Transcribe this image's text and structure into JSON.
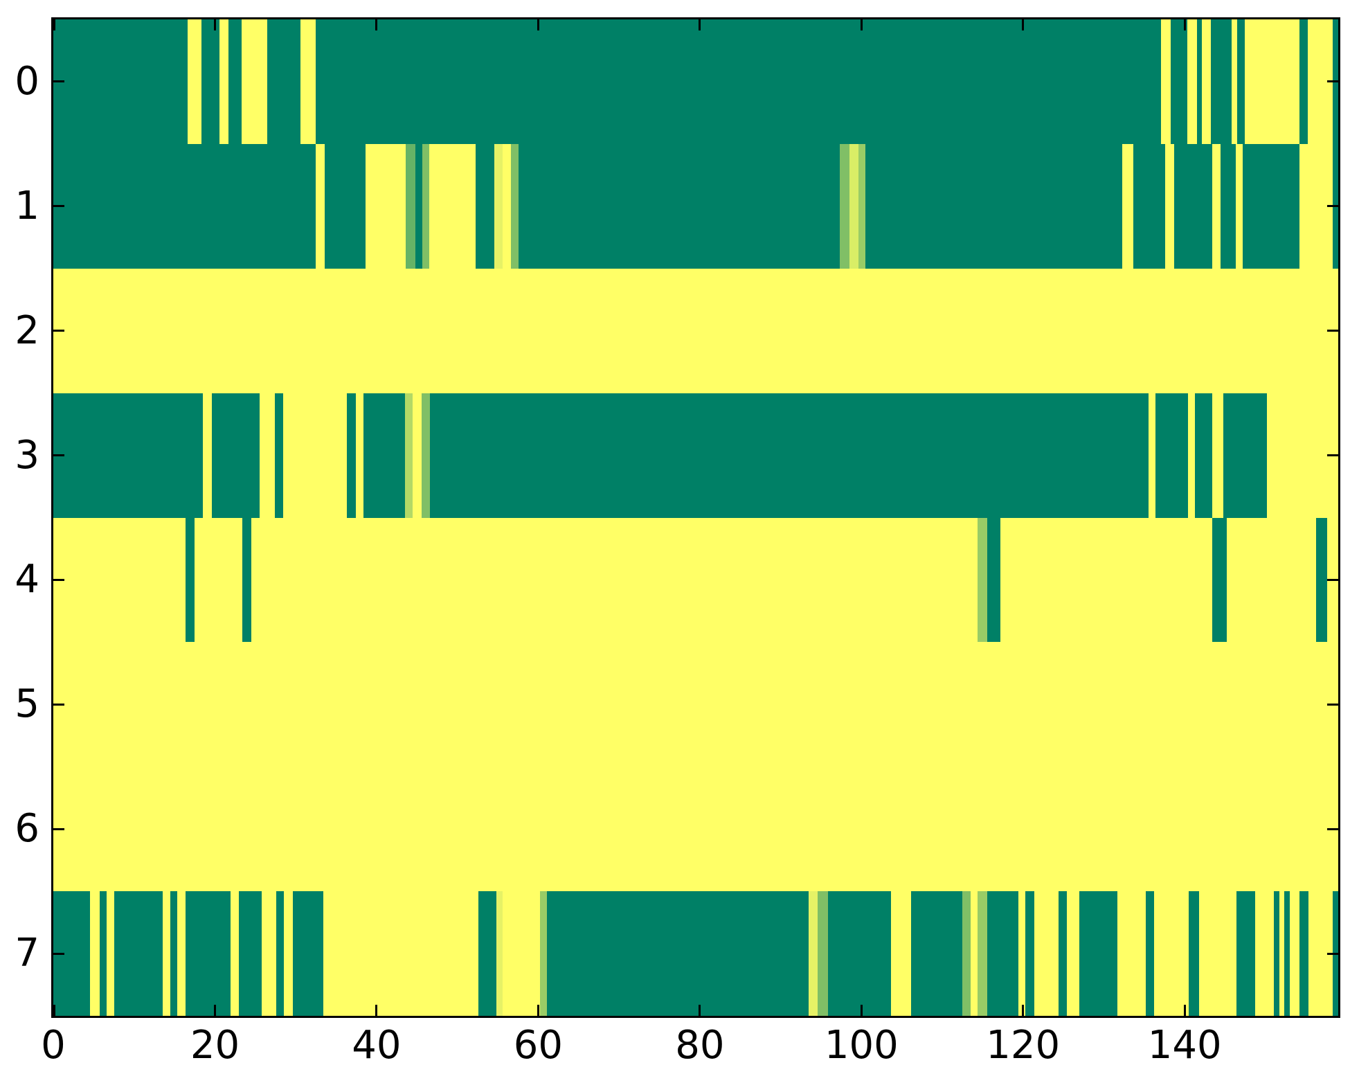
{
  "chart_data": {
    "type": "heatmap",
    "title": "",
    "xlabel": "",
    "ylabel": "",
    "x_range": [
      0,
      159
    ],
    "n_rows": 8,
    "x_ticks": [
      0,
      20,
      40,
      60,
      80,
      100,
      120,
      140
    ],
    "y_ticks": [
      0,
      1,
      2,
      3,
      4,
      5,
      6,
      7
    ],
    "grid": false,
    "legend": false,
    "colormap": "summer",
    "palette": {
      "t": "#008066",
      "y": "#FFFF66",
      "g4": "#66B366",
      "g5": "#80BF66",
      "g6": "#99CC66",
      "g7": "#B3D966",
      "g85": "#D9EE66",
      "g9": "#E6F266"
    },
    "axis_color": "#000000",
    "background_color": "#ffffff",
    "rows": [
      {
        "label": "0",
        "segments": [
          [
            0,
            16.6,
            "t"
          ],
          [
            16.6,
            18.3,
            "y"
          ],
          [
            18.3,
            20.6,
            "t"
          ],
          [
            20.6,
            21.7,
            "y"
          ],
          [
            21.7,
            23.3,
            "t"
          ],
          [
            23.3,
            26.5,
            "y"
          ],
          [
            26.5,
            30.6,
            "t"
          ],
          [
            30.6,
            32.5,
            "y"
          ],
          [
            32.5,
            137.1,
            "t"
          ],
          [
            137.1,
            138.3,
            "y"
          ],
          [
            138.3,
            140.3,
            "t"
          ],
          [
            140.3,
            141.5,
            "y"
          ],
          [
            141.5,
            142.1,
            "t"
          ],
          [
            142.1,
            143.2,
            "y"
          ],
          [
            143.2,
            145.8,
            "t"
          ],
          [
            145.8,
            146.5,
            "y"
          ],
          [
            146.5,
            147.4,
            "t"
          ],
          [
            147.4,
            154.2,
            "y"
          ],
          [
            154.2,
            155.2,
            "t"
          ],
          [
            155.2,
            158.3,
            "y"
          ],
          [
            158.3,
            159,
            "t"
          ]
        ]
      },
      {
        "label": "1",
        "segments": [
          [
            0,
            32.5,
            "t"
          ],
          [
            32.5,
            33.6,
            "y"
          ],
          [
            33.6,
            38.6,
            "t"
          ],
          [
            38.6,
            43.6,
            "y"
          ],
          [
            43.6,
            44.8,
            "g4"
          ],
          [
            44.8,
            45.7,
            "t"
          ],
          [
            45.7,
            46.5,
            "g5"
          ],
          [
            46.5,
            52.3,
            "y"
          ],
          [
            52.3,
            54.6,
            "t"
          ],
          [
            54.6,
            55.6,
            "g9"
          ],
          [
            55.6,
            56.6,
            "y"
          ],
          [
            56.6,
            57.6,
            "g5"
          ],
          [
            57.6,
            97.3,
            "t"
          ],
          [
            97.3,
            98.5,
            "g5"
          ],
          [
            98.5,
            99.6,
            "g85"
          ],
          [
            99.6,
            100.5,
            "g6"
          ],
          [
            100.5,
            132.3,
            "t"
          ],
          [
            132.3,
            133.6,
            "y"
          ],
          [
            133.6,
            137.6,
            "t"
          ],
          [
            137.6,
            138.7,
            "y"
          ],
          [
            138.7,
            143.4,
            "t"
          ],
          [
            143.4,
            144.4,
            "y"
          ],
          [
            144.4,
            146.3,
            "t"
          ],
          [
            146.3,
            147.2,
            "y"
          ],
          [
            147.2,
            154.2,
            "t"
          ],
          [
            154.2,
            158.3,
            "y"
          ],
          [
            158.3,
            159,
            "t"
          ]
        ]
      },
      {
        "label": "2",
        "segments": [
          [
            0,
            159,
            "y"
          ]
        ]
      },
      {
        "label": "3",
        "segments": [
          [
            0,
            18.5,
            "t"
          ],
          [
            18.5,
            19.6,
            "y"
          ],
          [
            19.6,
            25.5,
            "t"
          ],
          [
            25.5,
            27.4,
            "y"
          ],
          [
            27.4,
            28.4,
            "t"
          ],
          [
            28.4,
            36.3,
            "y"
          ],
          [
            36.3,
            37.4,
            "t"
          ],
          [
            37.4,
            38.4,
            "y"
          ],
          [
            38.4,
            43.5,
            "t"
          ],
          [
            43.5,
            44.5,
            "g7"
          ],
          [
            44.5,
            45.6,
            "y"
          ],
          [
            45.6,
            46.6,
            "g5"
          ],
          [
            46.6,
            135.5,
            "t"
          ],
          [
            135.5,
            136.4,
            "y"
          ],
          [
            136.4,
            140.4,
            "t"
          ],
          [
            140.4,
            141.3,
            "y"
          ],
          [
            141.3,
            143.4,
            "t"
          ],
          [
            143.4,
            144.8,
            "y"
          ],
          [
            144.8,
            150.2,
            "t"
          ],
          [
            150.2,
            159,
            "y"
          ]
        ]
      },
      {
        "label": "4",
        "segments": [
          [
            0,
            16.4,
            "y"
          ],
          [
            16.4,
            17.5,
            "t"
          ],
          [
            17.5,
            23.4,
            "y"
          ],
          [
            23.4,
            24.5,
            "t"
          ],
          [
            24.5,
            114.4,
            "y"
          ],
          [
            114.4,
            115.6,
            "g6"
          ],
          [
            115.6,
            117.2,
            "t"
          ],
          [
            117.2,
            143.4,
            "y"
          ],
          [
            143.4,
            145.2,
            "t"
          ],
          [
            145.2,
            156.3,
            "y"
          ],
          [
            156.3,
            157.6,
            "t"
          ],
          [
            157.6,
            159,
            "y"
          ]
        ]
      },
      {
        "label": "5",
        "segments": [
          [
            0,
            159,
            "y"
          ]
        ]
      },
      {
        "label": "6",
        "segments": [
          [
            0,
            159,
            "y"
          ]
        ]
      },
      {
        "label": "7",
        "segments": [
          [
            0,
            4.5,
            "t"
          ],
          [
            4.5,
            5.7,
            "y"
          ],
          [
            5.7,
            6.6,
            "t"
          ],
          [
            6.6,
            7.5,
            "y"
          ],
          [
            7.5,
            13.5,
            "t"
          ],
          [
            13.5,
            14.5,
            "y"
          ],
          [
            14.5,
            15.3,
            "t"
          ],
          [
            15.3,
            16.4,
            "y"
          ],
          [
            16.4,
            21.9,
            "t"
          ],
          [
            21.9,
            23,
            "y"
          ],
          [
            23,
            25.8,
            "t"
          ],
          [
            25.8,
            27.6,
            "y"
          ],
          [
            27.6,
            28.5,
            "t"
          ],
          [
            28.5,
            29.6,
            "y"
          ],
          [
            29.6,
            33.4,
            "t"
          ],
          [
            33.4,
            52.6,
            "y"
          ],
          [
            52.6,
            54.8,
            "t"
          ],
          [
            54.8,
            55.6,
            "g9"
          ],
          [
            55.6,
            60.2,
            "y"
          ],
          [
            60.2,
            61.1,
            "g6"
          ],
          [
            61.1,
            93.5,
            "t"
          ],
          [
            93.5,
            94.6,
            "g9"
          ],
          [
            94.6,
            95.9,
            "g5"
          ],
          [
            95.9,
            103.7,
            "t"
          ],
          [
            103.7,
            106.1,
            "y"
          ],
          [
            106.1,
            112.5,
            "t"
          ],
          [
            112.5,
            113.5,
            "g5"
          ],
          [
            113.5,
            114.4,
            "y"
          ],
          [
            114.4,
            115.6,
            "g6"
          ],
          [
            115.6,
            119.4,
            "t"
          ],
          [
            119.4,
            120.3,
            "y"
          ],
          [
            120.3,
            121.4,
            "t"
          ],
          [
            121.4,
            124.4,
            "y"
          ],
          [
            124.4,
            125.4,
            "t"
          ],
          [
            125.4,
            127,
            "y"
          ],
          [
            127,
            131.7,
            "t"
          ],
          [
            131.7,
            135.2,
            "y"
          ],
          [
            135.2,
            136.2,
            "t"
          ],
          [
            136.2,
            140.5,
            "y"
          ],
          [
            140.5,
            141.8,
            "t"
          ],
          [
            141.8,
            146.4,
            "y"
          ],
          [
            146.4,
            148.7,
            "t"
          ],
          [
            148.7,
            151,
            "y"
          ],
          [
            151,
            151.7,
            "t"
          ],
          [
            151.7,
            152.3,
            "y"
          ],
          [
            152.3,
            153,
            "t"
          ],
          [
            153,
            154.2,
            "y"
          ],
          [
            154.2,
            155.3,
            "t"
          ],
          [
            155.3,
            158.3,
            "y"
          ],
          [
            158.3,
            159,
            "t"
          ]
        ]
      }
    ]
  }
}
